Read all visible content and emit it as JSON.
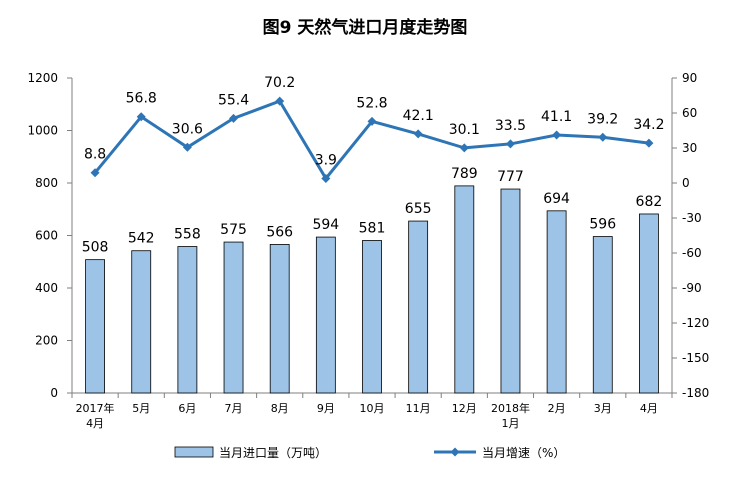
{
  "chart_data": {
    "type": "bar",
    "title": "图9  天然气进口月度走势图",
    "categories": [
      "2017年|4月",
      "5月",
      "6月",
      "7月",
      "8月",
      "9月",
      "10月",
      "11月",
      "12月",
      "2018年|1月",
      "2月",
      "3月",
      "4月"
    ],
    "series": [
      {
        "name": "当月进口量（万吨）",
        "type": "bar",
        "axis": "left",
        "color": "#9DC3E6",
        "values": [
          508,
          542,
          558,
          575,
          566,
          594,
          581,
          655,
          789,
          777,
          694,
          596,
          682
        ]
      },
      {
        "name": "当月增速（%）",
        "type": "line",
        "axis": "right",
        "color": "#2E75B6",
        "values": [
          8.8,
          56.8,
          30.6,
          55.4,
          70.2,
          3.9,
          52.8,
          42.1,
          30.1,
          33.5,
          41.1,
          39.2,
          34.2
        ]
      }
    ],
    "y_left": {
      "min": 0,
      "max": 1200,
      "ticks": [
        0,
        200,
        400,
        600,
        800,
        1000,
        1200
      ]
    },
    "y_right": {
      "min": -180,
      "max": 90,
      "ticks": [
        -180,
        -150,
        -120,
        -90,
        -60,
        -30,
        0,
        30,
        60,
        90
      ]
    },
    "grid": false,
    "legend_position": "bottom"
  }
}
